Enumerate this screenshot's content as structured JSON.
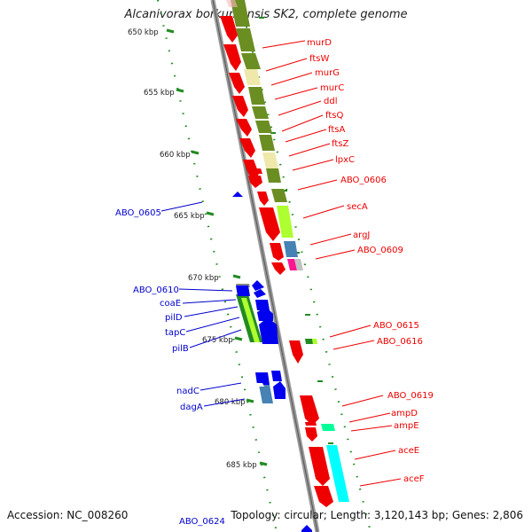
{
  "title": "Alcanivorax borkumensis SK2, complete genome",
  "footer": {
    "accession": "Accession: NC_008260",
    "stats": "Topology: circular; Length: 3,120,143 bp; Genes: 2,806"
  },
  "colors": {
    "forward_gene": "#0000ee",
    "reverse_gene": "#ee0000",
    "olive_cog": "#6b8e23",
    "tan_cog": "#eee8aa",
    "lime_cog": "#adff2f",
    "steel_cog": "#4682b4",
    "cyan_cog": "#00ffff",
    "pink_cog": "#ff1493",
    "backbone": "#888888",
    "tick_dots": "#228b22"
  },
  "kbp_markers": [
    "650 kbp",
    "655 kbp",
    "660 kbp",
    "665 kbp",
    "670 kbp",
    "675 kbp",
    "680 kbp",
    "685 kbp"
  ],
  "reverse_labels": [
    "murD",
    "ftsW",
    "murG",
    "murC",
    "ddl",
    "ftsQ",
    "ftsA",
    "ftsZ",
    "lpxC",
    "ABO_0606",
    "secA",
    "argJ",
    "ABO_0609",
    "ABO_0615",
    "ABO_0616",
    "ABO_0619",
    "ampD",
    "ampE",
    "aceE",
    "aceF"
  ],
  "forward_labels": [
    "ABO_0605",
    "ABO_0610",
    "coaE",
    "pilD",
    "tapC",
    "pilB",
    "nadC",
    "dagA",
    "ABO_0624"
  ]
}
